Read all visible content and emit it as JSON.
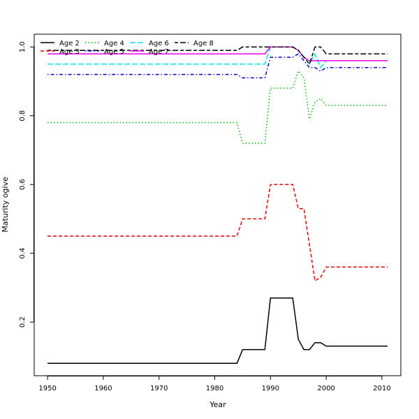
{
  "chart_data": {
    "type": "line",
    "title": "",
    "xlabel": "Year",
    "ylabel": "Maturity ogive",
    "xlim": [
      1947.6,
      2013.4
    ],
    "ylim": [
      0.044,
      1.037
    ],
    "xticks": [
      1950,
      1960,
      1970,
      1980,
      1990,
      2000,
      2010
    ],
    "yticks": [
      0.2,
      0.4,
      0.6,
      0.8,
      1.0
    ],
    "ytick_labels": [
      "0.2",
      "0.4",
      "0.6",
      "0.8",
      "1.0"
    ],
    "grid": false,
    "legend_position": "top-left",
    "series": [
      {
        "name": "Age 2",
        "color": "#000000",
        "dash": "solid",
        "x": [
          1950,
          1984,
          1985,
          1989,
          1990,
          1994,
          1995,
          1996,
          1997,
          1998,
          1999,
          2000,
          2011
        ],
        "y": [
          0.08,
          0.08,
          0.12,
          0.12,
          0.27,
          0.27,
          0.15,
          0.12,
          0.12,
          0.14,
          0.14,
          0.13,
          0.13
        ]
      },
      {
        "name": "Age 3",
        "color": "#ee0000",
        "dash": "dashed",
        "x": [
          1950,
          1984,
          1985,
          1989,
          1990,
          1994,
          1995,
          1996,
          1998,
          1999,
          2000,
          2011
        ],
        "y": [
          0.45,
          0.45,
          0.5,
          0.5,
          0.6,
          0.6,
          0.53,
          0.53,
          0.32,
          0.33,
          0.36,
          0.36
        ]
      },
      {
        "name": "Age 4",
        "color": "#00bb00",
        "dash": "dotted",
        "x": [
          1950,
          1984,
          1985,
          1989,
          1990,
          1994,
          1995,
          1996,
          1997,
          1998,
          1999,
          2000,
          2011
        ],
        "y": [
          0.78,
          0.78,
          0.72,
          0.72,
          0.88,
          0.88,
          0.93,
          0.91,
          0.79,
          0.84,
          0.85,
          0.83,
          0.83
        ]
      },
      {
        "name": "Age 5",
        "color": "#0000dd",
        "dash": "dotdash",
        "x": [
          1950,
          1984,
          1985,
          1989,
          1990,
          1994,
          1995,
          1996,
          1997,
          1998,
          1999,
          2000,
          2011
        ],
        "y": [
          0.92,
          0.92,
          0.91,
          0.91,
          0.97,
          0.97,
          0.98,
          0.96,
          0.94,
          0.94,
          0.93,
          0.94,
          0.94
        ]
      },
      {
        "name": "Age 6",
        "color": "#00e5ee",
        "dash": "longdash",
        "x": [
          1950,
          1989,
          1990,
          1994,
          1995,
          1996,
          1997,
          1998,
          1999,
          2000
        ],
        "y": [
          0.95,
          0.95,
          1.0,
          1.0,
          0.99,
          0.97,
          0.95,
          0.98,
          0.94,
          0.96
        ]
      },
      {
        "name": "Age 7",
        "color": "#ee00ee",
        "dash": "solid",
        "x": [
          1950,
          1989,
          1990,
          1994,
          1995,
          1996,
          1997,
          1998,
          1999,
          2000,
          2011
        ],
        "y": [
          0.98,
          0.98,
          1.0,
          1.0,
          0.99,
          0.97,
          0.96,
          0.96,
          0.96,
          0.96,
          0.96
        ]
      },
      {
        "name": "Age 8",
        "color": "#000000",
        "dash": "twodash",
        "x": [
          1950,
          1984,
          1985,
          1994,
          1995,
          1996,
          1997,
          1998,
          1999,
          2000,
          2011
        ],
        "y": [
          0.99,
          0.99,
          1.0,
          1.0,
          0.99,
          0.97,
          0.95,
          1.0,
          1.0,
          0.98,
          0.98
        ]
      }
    ]
  }
}
